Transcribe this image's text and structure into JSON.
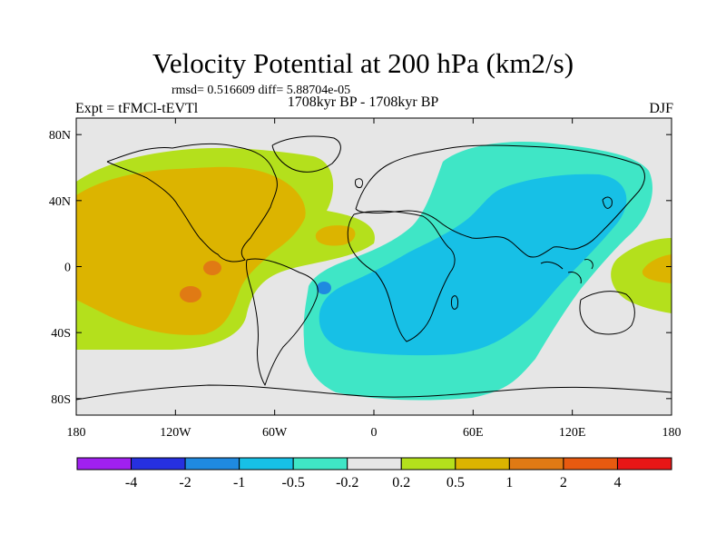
{
  "chart_data": {
    "type": "heatmap",
    "title": "Velocity Potential at 200 hPa (km2/s)",
    "stats_text": "rmsd= 0.516609 diff= 5.88704e-05",
    "left_label": "Expt = tFMCl-tEVTl",
    "center_label": "1708kyr BP - 1708kyr BP",
    "right_label": "DJF",
    "x_ticks": [
      "180",
      "120W",
      "60W",
      "0",
      "60E",
      "120E",
      "180"
    ],
    "x_tick_values": [
      -180,
      -120,
      -60,
      0,
      60,
      120,
      180
    ],
    "y_ticks": [
      "80N",
      "40N",
      "0",
      "40S",
      "80S"
    ],
    "y_tick_values": [
      80,
      40,
      0,
      -40,
      -80
    ],
    "xlim": [
      -180,
      180
    ],
    "ylim": [
      -90,
      90
    ],
    "colorbar_levels": [
      "-4",
      "-2",
      "-1",
      "-0.5",
      "-0.2",
      "0.2",
      "0.5",
      "1",
      "2",
      "4"
    ],
    "colorbar_colors": [
      "#a020f0",
      "#2630e0",
      "#1f8ae0",
      "#17c0e6",
      "#3fe6c6",
      "#e6e6e6",
      "#b4e01c",
      "#dcb400",
      "#e07a14",
      "#e85a10",
      "#e81616"
    ],
    "regions": [
      {
        "level": "0.2 to 0.5",
        "color": "#b4e01c",
        "description": "Eastern Pacific / Americas / Atlantic positive anomaly",
        "lon_range": [
          -180,
          -15
        ],
        "lat_range": [
          -45,
          80
        ]
      },
      {
        "level": "0.5 to 1",
        "color": "#dcb400",
        "description": "Eastern Pacific core",
        "lon_range": [
          -175,
          -75
        ],
        "lat_range": [
          -35,
          55
        ]
      },
      {
        "level": "1 to 2",
        "color": "#e07a14",
        "description": "Small maxima near 110W-100W",
        "lon_range": [
          -115,
          -95
        ],
        "lat_range": [
          -18,
          2
        ]
      },
      {
        "level": "-0.5 to -0.2",
        "color": "#3fe6c6",
        "description": "Africa / Indian Ocean / Asia / Southern Ocean negative anomaly",
        "lon_range": [
          -40,
          150
        ],
        "lat_range": [
          -85,
          82
        ]
      },
      {
        "level": "-1 to -0.5",
        "color": "#17c0e6",
        "description": "Indian Ocean / Asia core",
        "lon_range": [
          -30,
          125
        ],
        "lat_range": [
          -50,
          60
        ]
      },
      {
        "level": "-2 to -1",
        "color": "#1f8ae0",
        "description": "Small minimum off Brazil",
        "lon_range": [
          -33,
          -28
        ],
        "lat_range": [
          -14,
          -9
        ]
      },
      {
        "level": "0.2 to 0.5",
        "color": "#b4e01c",
        "description": "Western Pacific positive anomaly",
        "lon_range": [
          145,
          180
        ],
        "lat_range": [
          -25,
          10
        ]
      },
      {
        "level": "0.5 to 1",
        "color": "#dcb400",
        "description": "Western Pacific core",
        "lon_range": [
          160,
          180
        ],
        "lat_range": [
          -8,
          5
        ]
      }
    ]
  }
}
